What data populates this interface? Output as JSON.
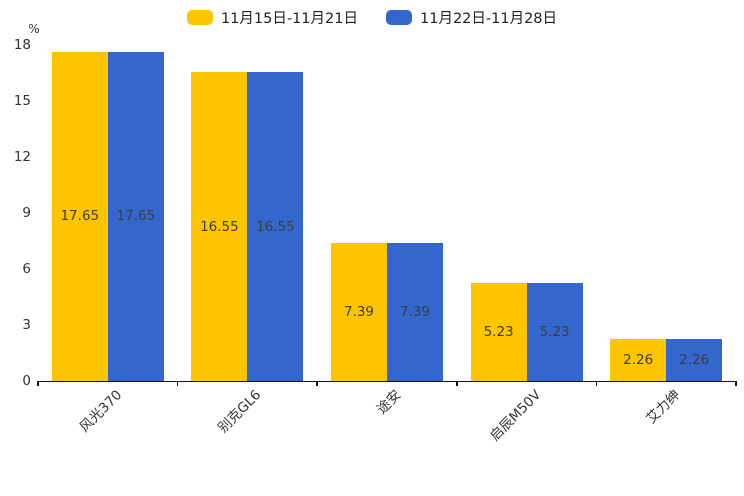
{
  "page": {
    "background": "#ffffff"
  },
  "legend": {
    "items": [
      {
        "label": "11月15日-11月21日",
        "color": "#FDC500"
      },
      {
        "label": "11月22日-11月28日",
        "color": "#3467CE"
      }
    ]
  },
  "y_axis": {
    "unit": "%",
    "ticks": [
      18,
      15,
      12,
      9,
      6,
      3,
      0
    ]
  },
  "chart_data": {
    "type": "bar",
    "title": "",
    "categories": [
      "风光370",
      "别克GL6",
      "途安",
      "启辰M50V",
      "艾力绅"
    ],
    "series": [
      {
        "name": "11月15日-11月21日",
        "color": "#FDC500",
        "values": [
          17.65,
          16.55,
          7.39,
          5.23,
          2.26
        ]
      },
      {
        "name": "11月22日-11月28日",
        "color": "#3467CE",
        "values": [
          17.65,
          16.55,
          7.39,
          5.23,
          2.26
        ]
      }
    ],
    "xlabel": "",
    "ylabel": "%",
    "ylim": [
      0,
      18
    ],
    "y_tick_step": 3,
    "grid": false,
    "legend_position": "top-center",
    "value_label_position": "inside-center",
    "value_label_format": "0.00",
    "x_label_rotation_deg": -45,
    "axis_color": "#111111",
    "tick_label_color": "#333333",
    "value_label_color": "#3d3d3d"
  }
}
